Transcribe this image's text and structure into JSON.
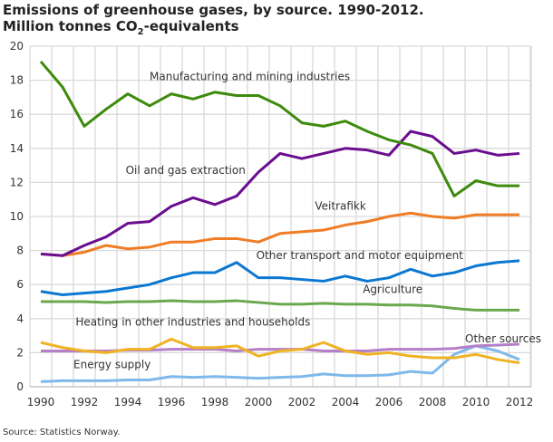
{
  "chart_data": {
    "type": "line",
    "title_line1": "Emissions of greenhouse gases, by source. 1990-2012.",
    "title_line2_prefix": "Million tonnes CO",
    "title_line2_sub": "2",
    "title_line2_suffix": "-equivalents",
    "source": "Source: Statistics Norway.",
    "xlim": [
      1990,
      2012
    ],
    "ylim": [
      0,
      20
    ],
    "grid": true,
    "x_ticks": [
      1990,
      1992,
      1994,
      1996,
      1998,
      2000,
      2002,
      2004,
      2006,
      2008,
      2010,
      2012
    ],
    "y_ticks": [
      0,
      2,
      4,
      6,
      8,
      10,
      12,
      14,
      16,
      18,
      20
    ],
    "x": [
      1990,
      1991,
      1992,
      1993,
      1994,
      1995,
      1996,
      1997,
      1998,
      1999,
      2000,
      2001,
      2002,
      2003,
      2004,
      2005,
      2006,
      2007,
      2008,
      2009,
      2010,
      2011,
      2012
    ],
    "series": [
      {
        "name": "Manufacturing and mining industries",
        "color": "#3d8b0c",
        "label_at": [
          1995.0,
          18.0
        ],
        "values": [
          19.1,
          17.6,
          15.3,
          16.3,
          17.2,
          16.5,
          17.2,
          16.9,
          17.3,
          17.1,
          17.1,
          16.5,
          15.5,
          15.3,
          15.6,
          15.0,
          14.5,
          14.2,
          13.7,
          11.2,
          12.1,
          11.8,
          11.8
        ]
      },
      {
        "name": "Oil and gas extraction",
        "color": "#6a0d8f",
        "label_at": [
          1993.9,
          12.5
        ],
        "values": [
          7.8,
          7.7,
          8.3,
          8.8,
          9.6,
          9.7,
          10.6,
          11.1,
          10.7,
          11.2,
          12.6,
          13.7,
          13.4,
          13.7,
          14.0,
          13.9,
          13.6,
          15.0,
          14.7,
          13.7,
          13.9,
          13.6,
          13.7
        ]
      },
      {
        "name": "Veitrafikk",
        "color": "#f07d25",
        "label_at": [
          2002.6,
          10.4
        ],
        "values": [
          7.8,
          7.7,
          7.9,
          8.3,
          8.1,
          8.2,
          8.5,
          8.5,
          8.7,
          8.7,
          8.5,
          9.0,
          9.1,
          9.2,
          9.5,
          9.7,
          10.0,
          10.2,
          10.0,
          9.9,
          10.1,
          10.1,
          10.1
        ]
      },
      {
        "name": "Other transport and motor equipment",
        "color": "#0a78d2",
        "label_at": [
          1999.9,
          7.5
        ],
        "values": [
          5.6,
          5.4,
          5.5,
          5.6,
          5.8,
          6.0,
          6.4,
          6.7,
          6.7,
          7.3,
          6.4,
          6.4,
          6.3,
          6.2,
          6.5,
          6.2,
          6.4,
          6.9,
          6.5,
          6.7,
          7.1,
          7.3,
          7.4
        ]
      },
      {
        "name": "Agriculture",
        "color": "#6aa84f",
        "label_at": [
          2004.8,
          5.5
        ],
        "values": [
          5.0,
          5.0,
          5.0,
          4.95,
          5.0,
          5.0,
          5.05,
          5.0,
          5.0,
          5.05,
          4.95,
          4.85,
          4.85,
          4.9,
          4.85,
          4.85,
          4.8,
          4.8,
          4.75,
          4.6,
          4.5,
          4.5,
          4.5
        ]
      },
      {
        "name": "Heating in other industries and households",
        "color": "#f0b323",
        "label_at": [
          1991.6,
          3.6
        ],
        "values": [
          2.6,
          2.3,
          2.1,
          2.0,
          2.2,
          2.2,
          2.8,
          2.3,
          2.3,
          2.4,
          1.8,
          2.1,
          2.2,
          2.6,
          2.1,
          1.9,
          2.0,
          1.8,
          1.7,
          1.7,
          1.9,
          1.6,
          1.4
        ]
      },
      {
        "name": "Other sources",
        "color": "#b57fc7",
        "label_at": [
          2009.5,
          2.6
        ],
        "values": [
          2.1,
          2.1,
          2.1,
          2.1,
          2.15,
          2.15,
          2.2,
          2.2,
          2.2,
          2.1,
          2.2,
          2.2,
          2.2,
          2.1,
          2.1,
          2.1,
          2.2,
          2.2,
          2.2,
          2.25,
          2.4,
          2.45,
          2.5
        ]
      },
      {
        "name": "Energy supply",
        "color": "#7fb8ea",
        "label_at": [
          1991.5,
          1.1
        ],
        "values": [
          0.3,
          0.35,
          0.35,
          0.35,
          0.4,
          0.4,
          0.6,
          0.55,
          0.6,
          0.55,
          0.5,
          0.55,
          0.6,
          0.75,
          0.65,
          0.65,
          0.7,
          0.9,
          0.8,
          1.9,
          2.4,
          2.1,
          1.6
        ]
      }
    ]
  }
}
